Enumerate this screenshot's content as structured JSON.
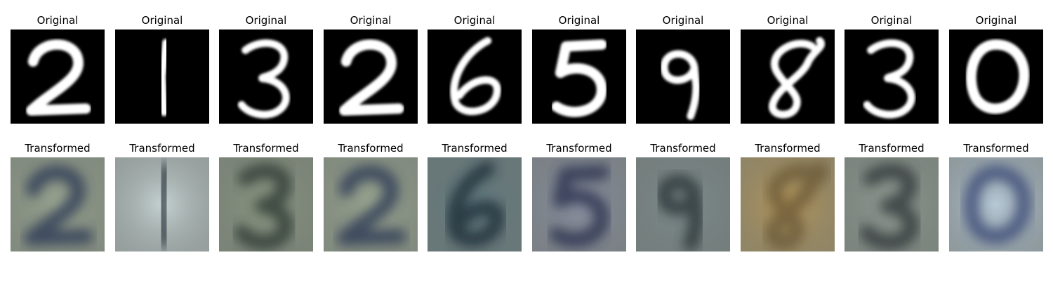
{
  "figure": {
    "row_original_title": "Original",
    "row_transformed_title": "Transformed",
    "samples": [
      {
        "digit": "2",
        "tint": "#9aa690",
        "ink": "#2d3a56"
      },
      {
        "digit": "1",
        "tint": "#c5d2d2",
        "ink": "#2f3a44"
      },
      {
        "digit": "3",
        "tint": "#8a9680",
        "ink": "#2f3a34"
      },
      {
        "digit": "2",
        "tint": "#9aa690",
        "ink": "#2d3a56"
      },
      {
        "digit": "6",
        "tint": "#627a80",
        "ink": "#1e2e38"
      },
      {
        "digit": "5",
        "tint": "#8a90a0",
        "ink": "#2a3050"
      },
      {
        "digit": "9",
        "tint": "#7c8a8c",
        "ink": "#2a3438"
      },
      {
        "digit": "8",
        "tint": "#b8995a",
        "ink": "#6c5a38"
      },
      {
        "digit": "3",
        "tint": "#8e9890",
        "ink": "#30383a"
      },
      {
        "digit": "0",
        "tint": "#b6c8d6",
        "ink": "#3c4c78"
      }
    ]
  }
}
